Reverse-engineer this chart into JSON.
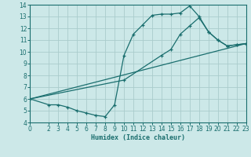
{
  "xlabel": "Humidex (Indice chaleur)",
  "bg_color": "#cce8e8",
  "grid_color": "#aacccc",
  "line_color": "#1a6e6e",
  "xlim": [
    0,
    23
  ],
  "ylim": [
    4,
    14
  ],
  "xticks": [
    0,
    2,
    3,
    4,
    5,
    6,
    7,
    8,
    9,
    10,
    11,
    12,
    13,
    14,
    15,
    16,
    17,
    18,
    19,
    20,
    21,
    22,
    23
  ],
  "yticks": [
    4,
    5,
    6,
    7,
    8,
    9,
    10,
    11,
    12,
    13,
    14
  ],
  "line1_x": [
    0,
    2,
    3,
    4,
    5,
    6,
    7,
    8,
    9,
    10,
    11,
    12,
    13,
    14,
    15,
    16,
    17,
    18,
    19,
    20,
    21,
    22,
    23
  ],
  "line1_y": [
    6.0,
    5.5,
    5.5,
    5.3,
    5.0,
    4.8,
    4.6,
    4.5,
    5.5,
    9.7,
    11.5,
    12.3,
    13.1,
    13.2,
    13.2,
    13.3,
    13.9,
    13.0,
    11.7,
    11.0,
    10.5,
    10.6,
    10.7
  ],
  "line2_x": [
    0,
    10,
    14,
    15,
    16,
    17,
    18,
    19,
    20,
    21,
    22,
    23
  ],
  "line2_y": [
    6.0,
    7.6,
    9.7,
    10.2,
    11.5,
    12.2,
    12.9,
    11.7,
    11.0,
    10.5,
    10.6,
    10.7
  ],
  "line3_x": [
    0,
    23
  ],
  "line3_y": [
    6.0,
    10.7
  ]
}
